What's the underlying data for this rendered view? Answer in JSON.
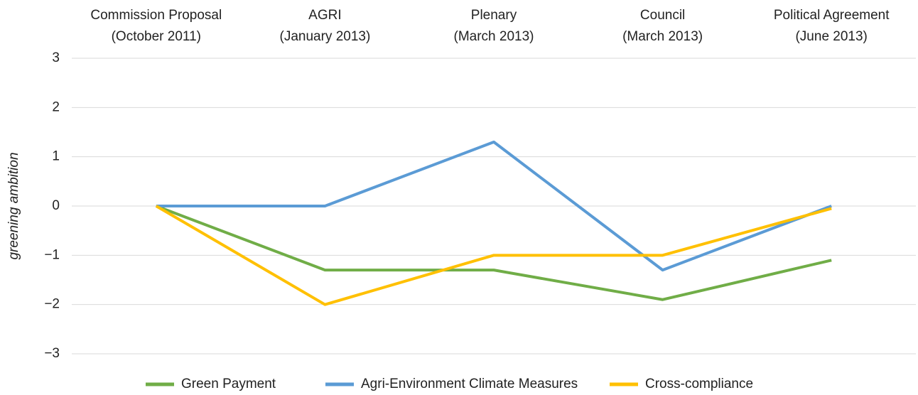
{
  "chart_data": {
    "type": "line",
    "ylabel": "greening ambition",
    "categories": [
      [
        "Commission Proposal",
        "(October 2011)"
      ],
      [
        "AGRI",
        "(January 2013)"
      ],
      [
        "Plenary",
        "(March 2013)"
      ],
      [
        "Council",
        "(March 2013)"
      ],
      [
        "Political Agreement",
        "(June 2013)"
      ]
    ],
    "series": [
      {
        "name": "Green Payment",
        "color": "#70ad47",
        "values": [
          0,
          -1.3,
          -1.3,
          -1.9,
          -1.1
        ]
      },
      {
        "name": "Agri-Environment Climate Measures",
        "color": "#5b9bd5",
        "values": [
          0,
          0,
          1.3,
          -1.3,
          0
        ]
      },
      {
        "name": "Cross-compliance",
        "color": "#ffc000",
        "values": [
          0,
          -2,
          -1,
          -1,
          -0.05
        ]
      }
    ],
    "ylim": [
      -3,
      3
    ],
    "yticks": [
      {
        "value": -3,
        "label": "−3"
      },
      {
        "value": -2,
        "label": "−2"
      },
      {
        "value": -1,
        "label": "−1"
      },
      0,
      1,
      2,
      3
    ],
    "grid": true,
    "legend": "bottom"
  }
}
